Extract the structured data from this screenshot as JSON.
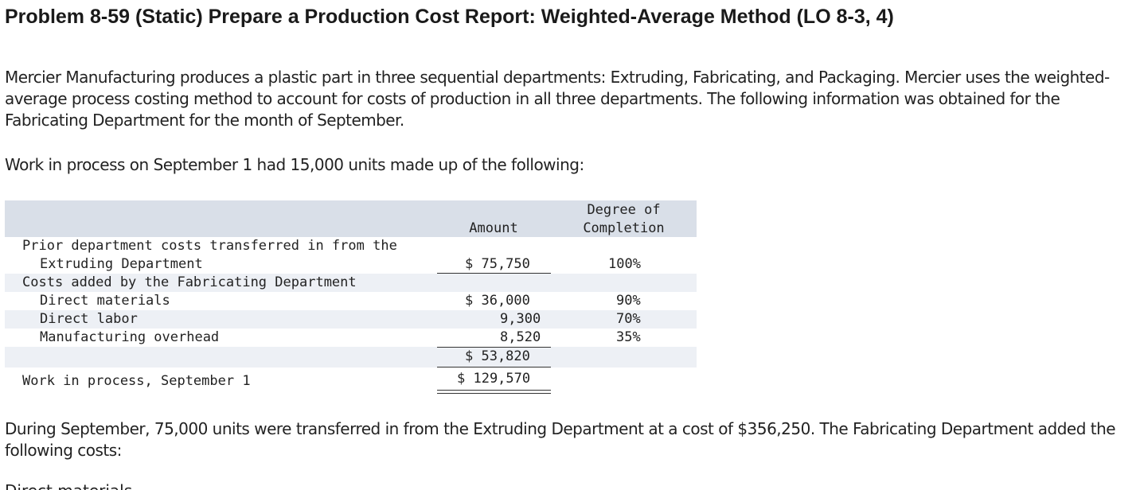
{
  "title": "Problem 8-59 (Static) Prepare a Production Cost Report: Weighted-Average Method (LO 8-3, 4)",
  "paragraph1": "Mercier Manufacturing produces a plastic part in three sequential departments: Extruding, Fabricating, and Packaging. Mercier uses the weighted-average process costing method to account for costs of production in all three departments. The following information was obtained for the Fabricating Department for the month of September.",
  "paragraph2": "Work in process on September 1 had 15,000 units made up of the following:",
  "table": {
    "headers": {
      "amount": "Amount",
      "degree_line1": "Degree of",
      "degree_line2": "Completion"
    },
    "rows": [
      {
        "label_line1": "Prior department costs transferred in from the",
        "label_line2": "Extruding Department",
        "amount": "$ 75,750",
        "degree": "100%"
      },
      {
        "label": "Costs added by the Fabricating Department"
      },
      {
        "label": "Direct materials",
        "amount": "$ 36,000",
        "degree": "90%"
      },
      {
        "label": "Direct labor",
        "amount": "9,300",
        "degree": "70%"
      },
      {
        "label": "Manufacturing overhead",
        "amount": "8,520",
        "degree": "35%"
      },
      {
        "amount": "$ 53,820"
      },
      {
        "label": "Work in process, September 1",
        "amount": "$ 129,570"
      }
    ]
  },
  "paragraph3": "During September, 75,000 units were transferred in from the Extruding Department at a cost of $356,250. The Fabricating Department added the following costs:",
  "cut_off_line": "Direct materials"
}
